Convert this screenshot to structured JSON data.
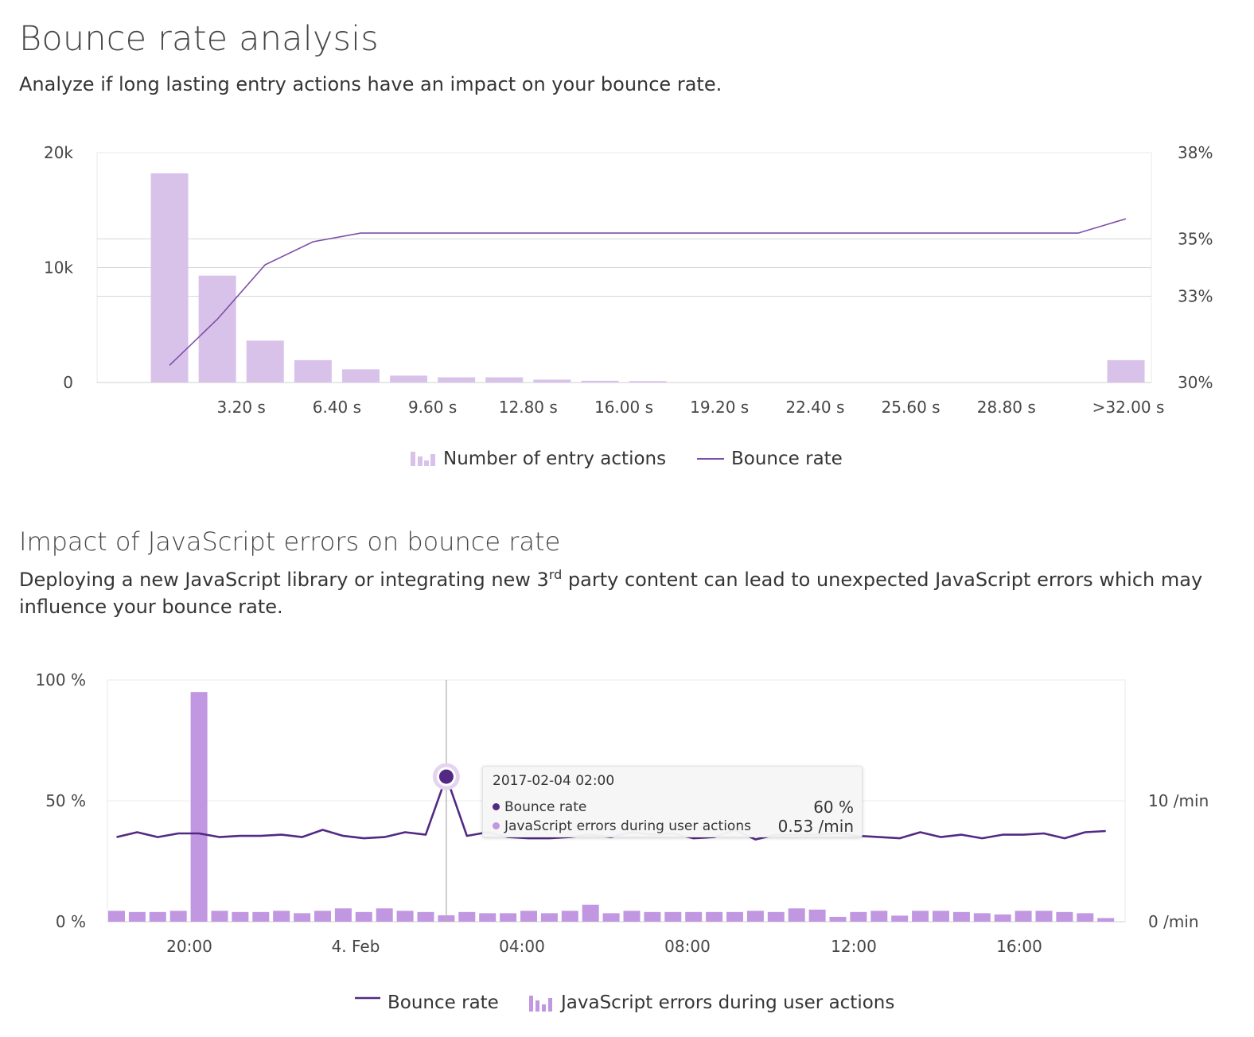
{
  "section1": {
    "title": "Bounce rate analysis",
    "subtitle": "Analyze if long lasting entry actions have an impact on your bounce rate."
  },
  "section2": {
    "title": "Impact of JavaScript errors on bounce rate",
    "subtitle_part1": "Deploying a new JavaScript library or integrating new 3",
    "subtitle_sup": "rd",
    "subtitle_part2": " party content can lead to unexpected JavaScript errors which may influence your bounce rate."
  },
  "colors": {
    "bar_light": "#d9c2ea",
    "line_medium": "#7c4ea8",
    "bar_medium": "#c097e0",
    "line_dark": "#522a83",
    "grid": "#d5d5d5",
    "hover_line": "#b2b2b2"
  },
  "tooltip": {
    "time": "2017-02-04 02:00",
    "row1_label": "Bounce rate",
    "row1_value": "60 %",
    "row2_label": "JavaScript errors during user actions",
    "row2_value": "0.53 /min"
  },
  "chart_data": [
    {
      "type": "bar",
      "legend": [
        "Number of entry actions",
        "Bounce rate"
      ],
      "x_tick_labels": [
        "3.20 s",
        "6.40 s",
        "9.60 s",
        "12.80 s",
        "16.00 s",
        "19.20 s",
        "22.40 s",
        "25.60 s",
        "28.80 s",
        ">32.00 s"
      ],
      "y_left": {
        "ticks": [
          "0",
          "10k",
          "20k"
        ],
        "range": [
          0,
          20000
        ]
      },
      "y_right": {
        "ticks": [
          "30%",
          "33%",
          "35%",
          "38%"
        ],
        "range": [
          30,
          38
        ]
      },
      "series": [
        {
          "name": "Number of entry actions",
          "kind": "bar",
          "axis": "left",
          "values": [
            18200,
            9300,
            3650,
            1950,
            1150,
            600,
            450,
            450,
            250,
            150,
            120,
            0,
            0,
            0,
            0,
            0,
            0,
            0,
            0,
            0,
            1950
          ]
        },
        {
          "name": "Bounce rate",
          "kind": "line",
          "axis": "right",
          "values": [
            30.6,
            32.2,
            34.1,
            34.9,
            35.2,
            35.2,
            35.2,
            35.2,
            35.2,
            35.2,
            35.2,
            35.2,
            35.2,
            35.2,
            35.2,
            35.2,
            35.2,
            35.2,
            35.2,
            35.2,
            35.7
          ]
        }
      ],
      "grid": true,
      "legend_position": "bottom"
    },
    {
      "type": "line",
      "legend": [
        "Bounce rate",
        "JavaScript errors during user actions"
      ],
      "x_tick_labels": [
        "20:00",
        "4. Feb",
        "04:00",
        "08:00",
        "12:00",
        "16:00"
      ],
      "y_left": {
        "ticks": [
          "0 %",
          "50 %",
          "100 %"
        ],
        "range": [
          0,
          100
        ]
      },
      "y_right": {
        "ticks": [
          "0 /min",
          "10 /min"
        ],
        "range": [
          0,
          20
        ]
      },
      "series": [
        {
          "name": "Bounce rate",
          "kind": "line",
          "axis": "left",
          "values": [
            35,
            37,
            35,
            36.5,
            36.5,
            35,
            35.5,
            35.5,
            36,
            35,
            38,
            35.5,
            34.5,
            35,
            37,
            36,
            60,
            35.5,
            37,
            35,
            34.5,
            34.5,
            35,
            36,
            35,
            37,
            36,
            36.5,
            34.5,
            35,
            38,
            34,
            36,
            36,
            36,
            36.5,
            35.5,
            35,
            34.5,
            37,
            35,
            36,
            34.5,
            36,
            36,
            36.5,
            34.5,
            37,
            37.5
          ]
        },
        {
          "name": "JavaScript errors during user actions",
          "kind": "bar",
          "axis": "right",
          "values": [
            0.9,
            0.8,
            0.8,
            0.9,
            19,
            0.9,
            0.8,
            0.8,
            0.9,
            0.7,
            0.9,
            1.1,
            0.8,
            1.1,
            0.9,
            0.8,
            0.53,
            0.8,
            0.7,
            0.7,
            0.9,
            0.7,
            0.9,
            1.4,
            0.7,
            0.9,
            0.8,
            0.8,
            0.8,
            0.8,
            0.8,
            0.9,
            0.8,
            1.1,
            1.0,
            0.4,
            0.8,
            0.9,
            0.5,
            0.9,
            0.9,
            0.8,
            0.7,
            0.6,
            0.9,
            0.9,
            0.8,
            0.7,
            0.3
          ]
        }
      ],
      "grid": true,
      "legend_position": "bottom"
    }
  ]
}
